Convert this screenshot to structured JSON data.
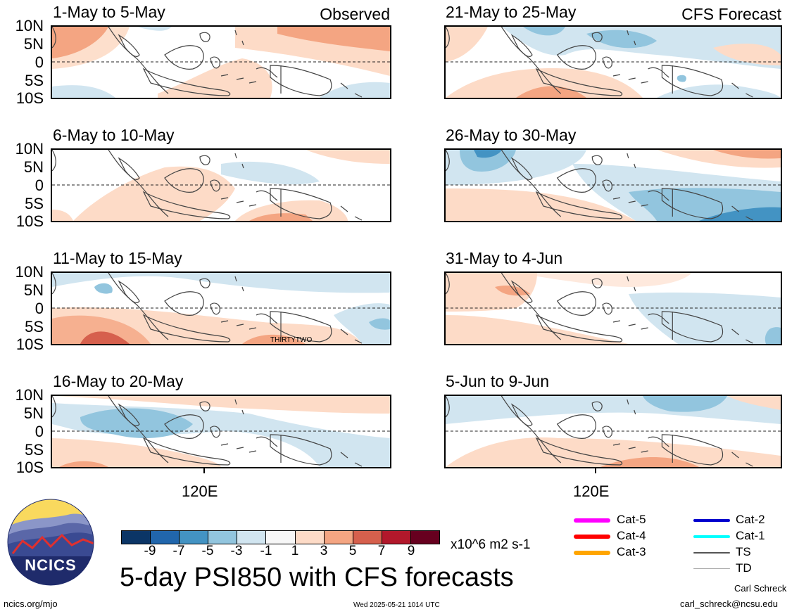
{
  "headers": {
    "left_panel_label": "Observed",
    "right_panel_label": "CFS Forecast"
  },
  "latitude_labels": [
    "10N",
    "5N",
    "0",
    "5S",
    "10S"
  ],
  "longitude_label": "120E",
  "panels_left": [
    {
      "title": "1-May to 5-May"
    },
    {
      "title": "6-May to 10-May"
    },
    {
      "title": "11-May to 15-May",
      "annotation": "THIRTYTWO"
    },
    {
      "title": "16-May to 20-May"
    }
  ],
  "panels_right": [
    {
      "title": "21-May to 25-May"
    },
    {
      "title": "26-May to 30-May"
    },
    {
      "title": "31-May to 4-Jun"
    },
    {
      "title": "5-Jun to 9-Jun"
    }
  ],
  "colorbar": {
    "labels": [
      "-9",
      "-7",
      "-5",
      "-3",
      "-1",
      "1",
      "3",
      "5",
      "7",
      "9"
    ],
    "colors": [
      "#0b3566",
      "#2166ac",
      "#4393c3",
      "#92c5de",
      "#d1e5f0",
      "#f7f7f7",
      "#fddbc7",
      "#f4a582",
      "#d6604d",
      "#b2182b",
      "#67001f"
    ],
    "units": "x10^6 m2 s-1"
  },
  "legend": [
    {
      "label": "Cat-5",
      "color": "#ff00ff"
    },
    {
      "label": "Cat-4",
      "color": "#ff0000"
    },
    {
      "label": "Cat-3",
      "color": "#ffa500"
    },
    {
      "label": "Cat-2",
      "color": "#0000cd"
    },
    {
      "label": "Cat-1",
      "color": "#00ffff"
    },
    {
      "label": "TS",
      "color": "#555555"
    },
    {
      "label": "TD",
      "color": "#aaaaaa"
    }
  ],
  "logo": {
    "text": "NCICS"
  },
  "main_title": "5-day PSI850 with CFS forecasts",
  "footer": {
    "url": "ncics.org/mjo",
    "timestamp": "Wed 2025-05-21 1014 UTC",
    "author": "Carl Schreck",
    "email": "carl_schreck@ncsu.edu"
  }
}
